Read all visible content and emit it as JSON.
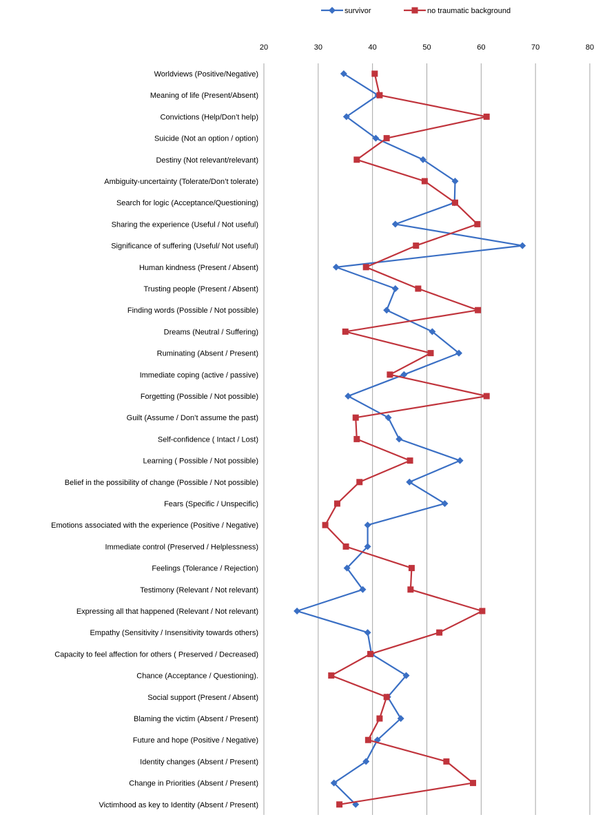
{
  "chart_data": {
    "type": "line",
    "orientation": "horizontal-value-axis",
    "title": "",
    "xlabel": "",
    "ylabel": "",
    "xlim": [
      20,
      80
    ],
    "x_ticks": [
      "20",
      "30",
      "40",
      "50",
      "60",
      "70",
      "80"
    ],
    "grid": true,
    "legend_position": "top-right",
    "categories": [
      "Worldviews (Positive/Negative)",
      "Meaning of life (Present/Absent)",
      "Convictions (Help/Don’t help)",
      "Suicide (Not an option / option)",
      "Destiny (Not relevant/relevant)",
      "Ambiguity-uncertainty (Tolerate/Don’t tolerate)",
      "Search for logic (Acceptance/Questioning)",
      "Sharing the experience (Useful / Not useful)",
      "Significance of suffering (Useful/ Not useful)",
      "Human kindness (Present / Absent)",
      "Trusting people (Present / Absent)",
      "Finding words (Possible / Not possible)",
      "Dreams (Neutral / Suffering)",
      "Ruminating (Absent / Present)",
      "Immediate coping (active / passive)",
      "Forgetting (Possible / Not possible)",
      "Guilt (Assume / Don’t assume the past)",
      "Self-confidence ( Intact / Lost)",
      "Learning ( Possible / Not possible)",
      "Belief in the possibility of change (Possible / Not possible)",
      "Fears (Specific / Unspecific)",
      "Emotions associated with the experience (Positive / Negative)",
      "Immediate control (Preserved / Helplessness)",
      "Feelings (Tolerance / Rejection)",
      "Testimony (Relevant / Not relevant)",
      "Expressing all that happened (Relevant / Not relevant)",
      "Empathy (Sensitivity / Insensitivity towards others)",
      "Capacity to feel affection for others ( Preserved / Decreased)",
      "Chance (Acceptance / Questioning).",
      "Social support (Present / Absent)",
      "Blaming the victim (Absent / Present)",
      "Future and hope (Positive / Negative)",
      "Identity changes (Absent / Present)",
      "Change in Priorities (Absent / Present)",
      "Victimhood as key to Identity (Absent / Present)"
    ],
    "series": [
      {
        "name": "survivor",
        "color": "#3a6fc4",
        "marker": "diamond",
        "values": [
          34.7,
          41.0,
          35.2,
          40.6,
          49.3,
          55.2,
          55.1,
          44.2,
          67.6,
          33.3,
          44.2,
          42.6,
          51.0,
          55.9,
          45.8,
          35.5,
          42.9,
          44.9,
          56.1,
          46.8,
          53.3,
          39.1,
          39.1,
          35.3,
          38.2,
          26.1,
          39.1,
          39.8,
          46.2,
          42.8,
          45.2,
          40.9,
          38.8,
          32.9,
          36.9
        ]
      },
      {
        "name": "no traumatic background",
        "color": "#c0343c",
        "marker": "square",
        "values": [
          40.4,
          41.3,
          61.0,
          42.6,
          37.1,
          49.6,
          55.2,
          59.3,
          48.0,
          38.8,
          48.4,
          59.4,
          35.0,
          50.7,
          43.2,
          61.0,
          36.9,
          37.1,
          46.9,
          37.6,
          33.5,
          31.3,
          35.1,
          47.2,
          47.0,
          60.2,
          52.3,
          39.6,
          32.4,
          42.6,
          41.3,
          39.2,
          53.6,
          58.5,
          33.9
        ]
      }
    ]
  }
}
